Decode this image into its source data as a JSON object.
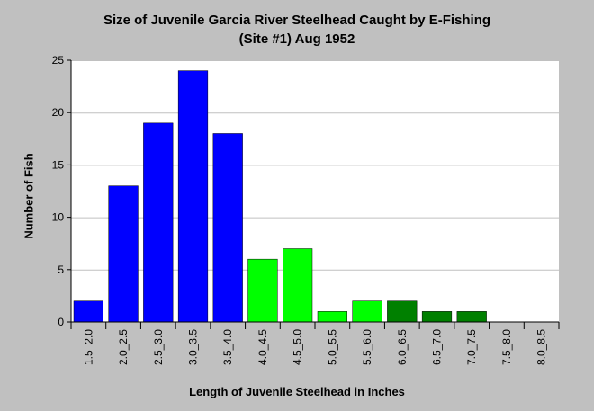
{
  "chart_data": {
    "type": "bar",
    "title_line1": "Size of Juvenile Garcia River Steelhead Caught by E-Fishing",
    "title_line2": "(Site #1) Aug 1952",
    "xlabel": "Length of Juvenile Steelhead in Inches",
    "ylabel": "Number of Fish",
    "ylim": [
      0,
      25
    ],
    "yticks": [
      0,
      5,
      10,
      15,
      20,
      25
    ],
    "grid": true,
    "categories": [
      "1.5_2.0",
      "2.0_2.5",
      "2.5_3.0",
      "3.0_3.5",
      "3.5_4.0",
      "4.0_4.5",
      "4.5_5.0",
      "5.0_5.5",
      "5.5_6.0",
      "6.0_6.5",
      "6.5_7.0",
      "7.0_7.5",
      "7.5_8.0",
      "8.0_8.5"
    ],
    "values": [
      2,
      13,
      19,
      24,
      18,
      6,
      7,
      1,
      2,
      2,
      1,
      1,
      0,
      0
    ],
    "bar_colors": [
      "#0000ff",
      "#0000ff",
      "#0000ff",
      "#0000ff",
      "#0000ff",
      "#00ff00",
      "#00ff00",
      "#00ff00",
      "#00ff00",
      "#008000",
      "#008000",
      "#008000",
      "#008000",
      "#008000"
    ],
    "background": "#c0c0c0",
    "plot_background": "#ffffff",
    "grid_color": "#c0c0c0"
  }
}
